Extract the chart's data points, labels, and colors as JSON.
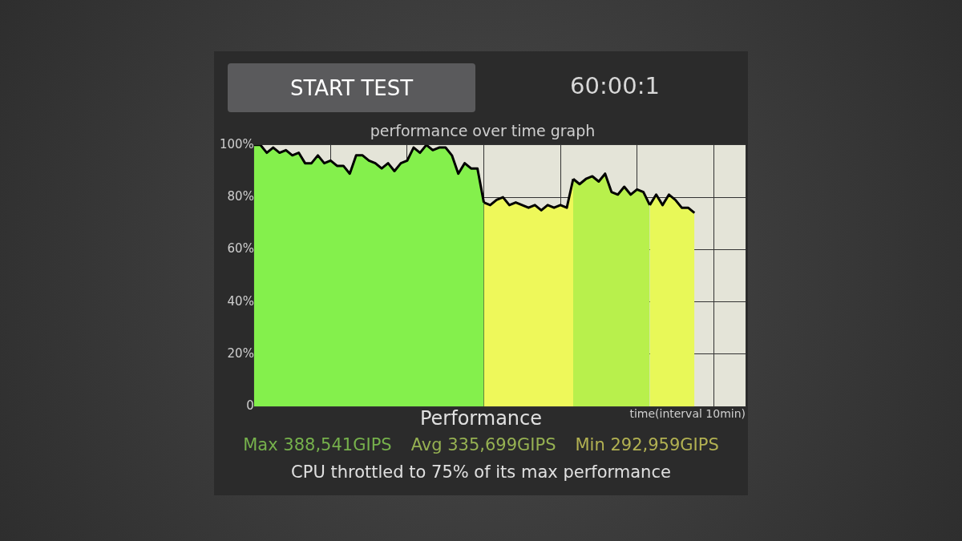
{
  "chart_data": {
    "type": "area",
    "title": "performance over time graph",
    "xlabel": "time(interval 10min)",
    "annotations": [
      "START TEST",
      "60:00:1",
      "Performance",
      "Max 388,541GIPS",
      "Avg 335,699GIPS",
      "Min 292,959GIPS",
      "CPU throttled to 75% of its max performance"
    ],
    "categories": [
      null,
      null,
      null,
      null,
      null,
      null,
      null,
      null,
      null,
      null,
      null,
      null,
      null,
      null,
      null,
      null,
      null,
      null,
      null,
      null,
      null,
      null,
      null,
      null,
      null,
      null,
      null,
      null,
      null,
      null,
      null,
      null,
      null,
      null,
      null,
      null,
      null,
      null,
      null,
      null,
      null,
      null,
      null,
      null,
      null,
      null,
      null,
      null,
      null,
      null,
      null,
      null,
      null,
      null,
      null,
      null,
      null,
      null,
      null,
      null,
      null,
      null,
      null,
      null,
      null,
      null,
      null,
      null,
      null,
      null,
      null,
      null,
      null,
      null,
      null,
      null,
      null,
      null
    ],
    "ylim": [
      0,
      100
    ],
    "yticks": [
      0,
      {
        "value": 20,
        "label": "20%"
      },
      {
        "value": 40,
        "label": "40%"
      },
      {
        "value": 60,
        "label": "60%"
      },
      {
        "value": 80,
        "label": "80%"
      },
      {
        "value": 100,
        "label": "100%"
      }
    ],
    "tick_labels": "y",
    "grid": true,
    "legend": false,
    "marker": "none",
    "line_style": "solid",
    "series": [
      {
        "color": "#84f04c",
        "values": [
          100,
          100,
          97,
          99,
          97,
          98,
          96,
          97,
          93,
          93,
          96,
          93,
          94,
          92,
          92,
          89,
          96,
          96,
          94,
          93,
          91,
          93,
          90,
          93,
          94,
          99,
          97,
          100,
          98,
          99,
          99,
          96,
          89,
          93,
          91,
          91,
          78,
          null,
          null,
          null,
          null,
          null,
          null,
          null,
          null,
          null,
          null,
          null,
          null,
          null,
          null,
          null,
          null,
          null,
          null,
          null,
          null,
          null,
          null,
          null,
          null,
          null,
          null,
          null,
          null,
          null,
          null,
          null,
          null,
          null,
          null,
          null,
          null,
          null,
          null,
          null,
          null,
          null
        ]
      },
      {
        "color": "#eef85a",
        "values": [
          null,
          null,
          null,
          null,
          null,
          null,
          null,
          null,
          null,
          null,
          null,
          null,
          null,
          null,
          null,
          null,
          null,
          null,
          null,
          null,
          null,
          null,
          null,
          null,
          null,
          null,
          null,
          null,
          null,
          null,
          null,
          null,
          null,
          null,
          null,
          null,
          78,
          77,
          79,
          80,
          77,
          78,
          77,
          76,
          77,
          75,
          77,
          76,
          77,
          76,
          87,
          null,
          null,
          null,
          null,
          null,
          null,
          null,
          null,
          null,
          null,
          null,
          null,
          null,
          null,
          null,
          null,
          null,
          null,
          null,
          null,
          null,
          null,
          null,
          null,
          null,
          null,
          null
        ]
      },
      {
        "color": "#b8f04c",
        "values": [
          null,
          null,
          null,
          null,
          null,
          null,
          null,
          null,
          null,
          null,
          null,
          null,
          null,
          null,
          null,
          null,
          null,
          null,
          null,
          null,
          null,
          null,
          null,
          null,
          null,
          null,
          null,
          null,
          null,
          null,
          null,
          null,
          null,
          null,
          null,
          null,
          null,
          null,
          null,
          null,
          null,
          null,
          null,
          null,
          null,
          null,
          null,
          null,
          null,
          null,
          87,
          85,
          87,
          88,
          86,
          89,
          82,
          81,
          84,
          81,
          83,
          82,
          77,
          null,
          null,
          null,
          null,
          null,
          null,
          null,
          null,
          null,
          null,
          null,
          null,
          null,
          null,
          null
        ]
      },
      {
        "color": "#e8f858",
        "values": [
          null,
          null,
          null,
          null,
          null,
          null,
          null,
          null,
          null,
          null,
          null,
          null,
          null,
          null,
          null,
          null,
          null,
          null,
          null,
          null,
          null,
          null,
          null,
          null,
          null,
          null,
          null,
          null,
          null,
          null,
          null,
          null,
          null,
          null,
          null,
          null,
          null,
          null,
          null,
          null,
          null,
          null,
          null,
          null,
          null,
          null,
          null,
          null,
          null,
          null,
          null,
          null,
          null,
          null,
          null,
          null,
          null,
          null,
          null,
          null,
          null,
          null,
          77,
          81,
          77,
          81,
          79,
          76,
          76,
          74,
          null,
          null,
          null,
          null,
          null,
          null,
          null,
          null
        ]
      }
    ]
  }
}
